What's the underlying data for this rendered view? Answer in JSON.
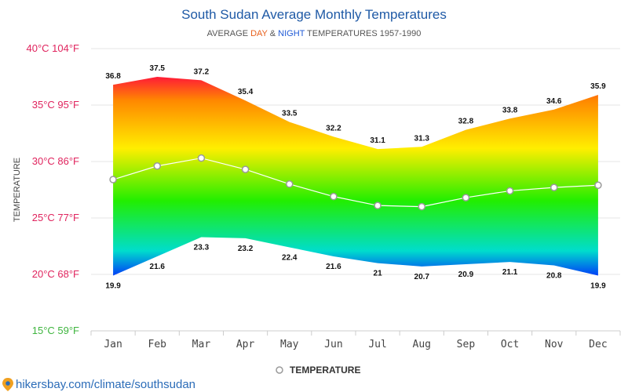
{
  "chart_data": {
    "type": "area",
    "title": "South Sudan Average Monthly Temperatures",
    "subtitle": {
      "prefix": "AVERAGE ",
      "day": "DAY",
      "amp": " & ",
      "night": "NIGHT",
      "suffix": " TEMPERATURES 1957-1990"
    },
    "ylabel": "TEMPERATURE",
    "categories": [
      "Jan",
      "Feb",
      "Mar",
      "Apr",
      "May",
      "Jun",
      "Jul",
      "Aug",
      "Sep",
      "Oct",
      "Nov",
      "Dec"
    ],
    "ylim": [
      15,
      40
    ],
    "yticks": [
      {
        "value": 40,
        "label": "40°C 104°F",
        "color": "#e0245e"
      },
      {
        "value": 35,
        "label": "35°C 95°F",
        "color": "#e0245e"
      },
      {
        "value": 30,
        "label": "30°C 86°F",
        "color": "#e0245e"
      },
      {
        "value": 25,
        "label": "25°C 77°F",
        "color": "#e0245e"
      },
      {
        "value": 20,
        "label": "20°C 68°F",
        "color": "#e0245e"
      },
      {
        "value": 15,
        "label": "15°C 59°F",
        "color": "#3fb53f"
      }
    ],
    "series": [
      {
        "key": "day",
        "values": [
          36.8,
          37.5,
          37.2,
          35.4,
          33.5,
          32.2,
          31.1,
          31.3,
          32.8,
          33.8,
          34.6,
          35.9
        ]
      },
      {
        "key": "night",
        "values": [
          19.9,
          21.6,
          23.3,
          23.2,
          22.4,
          21.6,
          21.0,
          20.7,
          20.9,
          21.1,
          20.8,
          19.9
        ]
      },
      {
        "name": "TEMPERATURE",
        "key": "avg",
        "values": [
          28.4,
          29.6,
          30.3,
          29.3,
          28.0,
          26.9,
          26.1,
          26.0,
          26.8,
          27.4,
          27.7,
          27.9
        ]
      }
    ],
    "day_labels": [
      "36.8",
      "37.5",
      "37.2",
      "35.4",
      "33.5",
      "32.2",
      "31.1",
      "31.3",
      "32.8",
      "33.8",
      "34.6",
      "35.9"
    ],
    "night_labels": [
      "19.9",
      "21.6",
      "23.3",
      "23.2",
      "22.4",
      "21.6",
      "21",
      "20.7",
      "20.9",
      "21.1",
      "20.8",
      "19.9"
    ],
    "legend": {
      "label": "TEMPERATURE",
      "position": "bottom-center"
    },
    "grid": true,
    "colors": {
      "hot": "#ff0044",
      "warm": "#ff8800",
      "mild": "#ffee00",
      "cool": "#22ee00",
      "cold": "#00ddcc",
      "coldest": "#0022ff",
      "avg_line": "#ffffff",
      "avg_marker_stroke": "#9a9a9a"
    }
  },
  "footer": {
    "site": "hikersbay.com/climate/southsudan"
  }
}
